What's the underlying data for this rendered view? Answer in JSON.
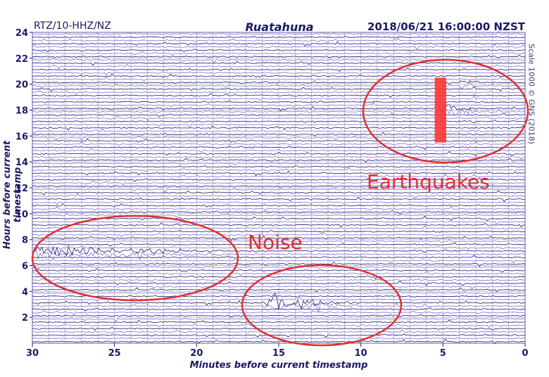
{
  "header": {
    "channel": "RTZ/10-HHZ/NZ",
    "station": "Ruatahuna",
    "timestamp": "2018/06/21 16:00:00 NZST"
  },
  "scale_note": "Scale 1000 © GNS (2018)",
  "annotations": {
    "earthquakes": "Earthquakes",
    "noise": "Noise"
  },
  "colors": {
    "trace_dark": "#1a1a66",
    "trace_light": "#8866dd",
    "annotation": "#e03030",
    "grid": "#9aaac0"
  },
  "chart_data": {
    "type": "line",
    "title": "",
    "xlabel": "Minutes before current timestamp",
    "ylabel": "Hours before current timestamp",
    "xlim": [
      30,
      0
    ],
    "ylim": [
      0,
      24
    ],
    "x_ticks": [
      "30",
      "25",
      "20",
      "15",
      "10",
      "5",
      "0"
    ],
    "y_ticks": [
      "2",
      "4",
      "6",
      "8",
      "10",
      "12",
      "14",
      "16",
      "18",
      "20",
      "22",
      "24"
    ],
    "grid": true,
    "series": [
      {
        "description": "earthquake burst",
        "hour": 18,
        "start_min": 5.5,
        "end_min": 3,
        "amplitude": "large"
      },
      {
        "description": "earthquake aftershock",
        "hour": 20,
        "start_min": 4,
        "end_min": 2.5,
        "amplitude": "medium"
      },
      {
        "description": "noise",
        "hour": 7,
        "start_min": 30,
        "end_min": 18,
        "amplitude": "medium"
      },
      {
        "description": "noise",
        "hour": 3,
        "start_min": 16,
        "end_min": 10,
        "amplitude": "large"
      }
    ]
  }
}
